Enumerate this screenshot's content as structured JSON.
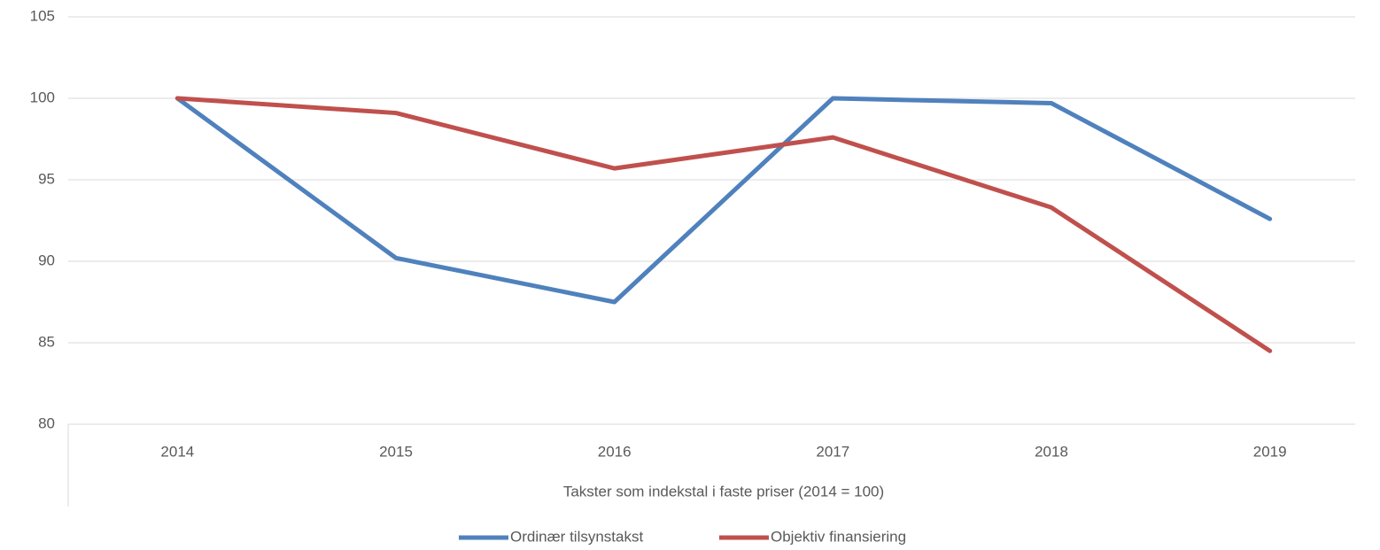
{
  "chart_data": {
    "type": "line",
    "x_label": "Takster som indekstal i faste priser (2014 = 100)",
    "categories": [
      "2014",
      "2015",
      "2016",
      "2017",
      "2018",
      "2019"
    ],
    "series": [
      {
        "name": "Ordinær tilsynstakst",
        "color": "#4f81bd",
        "values": [
          100,
          90.2,
          87.5,
          100,
          99.7,
          92.6
        ]
      },
      {
        "name": "Objektiv finansiering",
        "color": "#c0504d",
        "values": [
          100,
          99.1,
          95.7,
          97.6,
          93.3,
          84.5
        ]
      }
    ],
    "ylim": [
      80,
      105
    ],
    "yticks": [
      80,
      85,
      90,
      95,
      100,
      105
    ],
    "grid": true,
    "legend": "bottom"
  }
}
